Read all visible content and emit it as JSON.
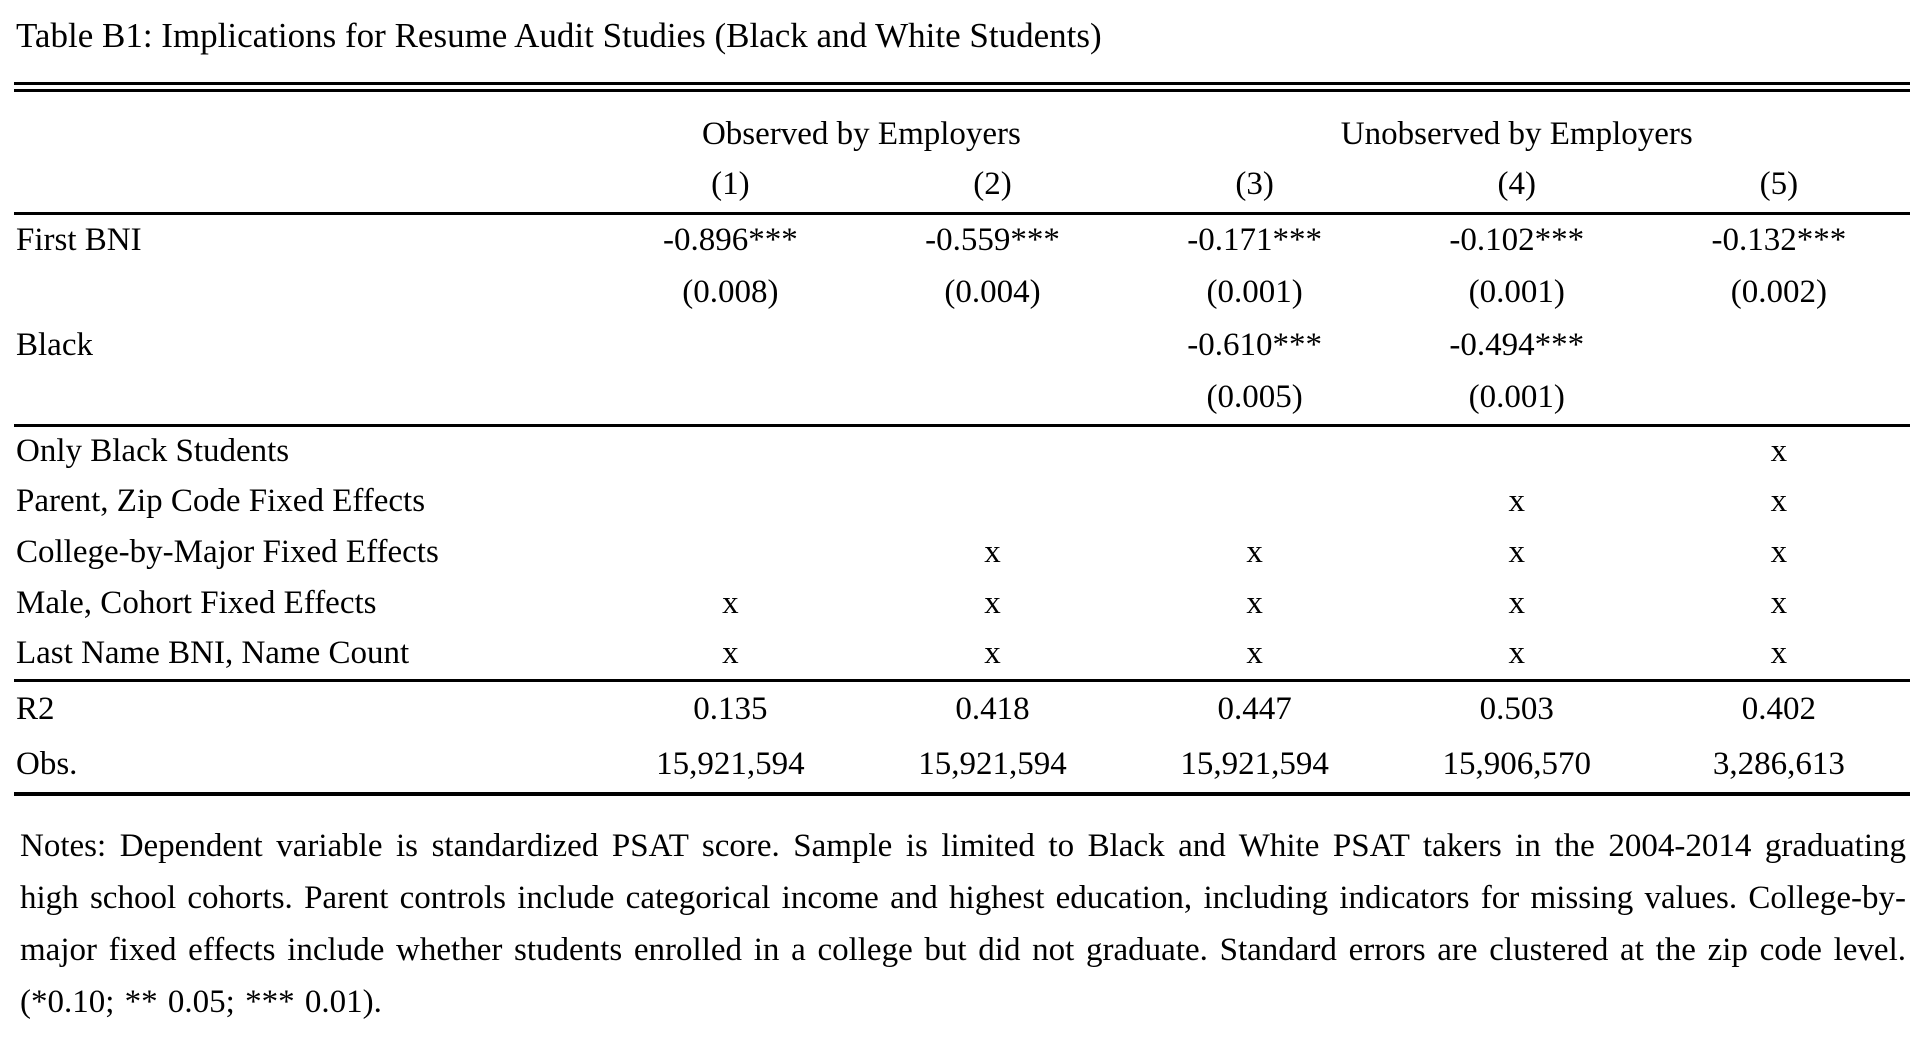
{
  "title": "Table B1: Implications for Resume Audit Studies (Black and White Students)",
  "colors": {
    "text": "#000000",
    "background": "#ffffff",
    "rules": "#000000"
  },
  "header": {
    "group_observed": "Observed by Employers",
    "group_unobserved": "Unobserved by Employers",
    "cols": [
      "(1)",
      "(2)",
      "(3)",
      "(4)",
      "(5)"
    ]
  },
  "coef_rows": [
    {
      "label": "First BNI",
      "values": [
        "-0.896***",
        "-0.559***",
        "-0.171***",
        "-0.102***",
        "-0.132***"
      ],
      "se": [
        "(0.008)",
        "(0.004)",
        "(0.001)",
        "(0.001)",
        "(0.002)"
      ]
    },
    {
      "label": "Black",
      "values": [
        "",
        "",
        "-0.610***",
        "-0.494***",
        ""
      ],
      "se": [
        "",
        "",
        "(0.005)",
        "(0.001)",
        ""
      ]
    }
  ],
  "control_rows": [
    {
      "label": "Only Black Students",
      "values": [
        "",
        "",
        "",
        "",
        "x"
      ]
    },
    {
      "label": "Parent, Zip Code Fixed Effects",
      "values": [
        "",
        "",
        "",
        "x",
        "x"
      ]
    },
    {
      "label": "College-by-Major Fixed Effects",
      "values": [
        "",
        "x",
        "x",
        "x",
        "x"
      ]
    },
    {
      "label": "Male, Cohort Fixed Effects",
      "values": [
        "x",
        "x",
        "x",
        "x",
        "x"
      ]
    },
    {
      "label": "Last Name BNI, Name Count",
      "values": [
        "x",
        "x",
        "x",
        "x",
        "x"
      ]
    }
  ],
  "stat_rows": [
    {
      "label": "R2",
      "values": [
        "0.135",
        "0.418",
        "0.447",
        "0.503",
        "0.402"
      ]
    },
    {
      "label": "Obs.",
      "values": [
        "15,921,594",
        "15,921,594",
        "15,921,594",
        "15,906,570",
        "3,286,613"
      ]
    }
  ],
  "notes": "Notes: Dependent variable is standardized PSAT score. Sample is limited to Black and White PSAT takers in the 2004-2014 graduating high school cohorts. Parent controls include categorical income and highest education, including indicators for missing values. College-by-major fixed effects include whether students enrolled in a college but did not graduate. Standard errors are clustered at the zip code level. (*0.10; ** 0.05; *** 0.01)."
}
